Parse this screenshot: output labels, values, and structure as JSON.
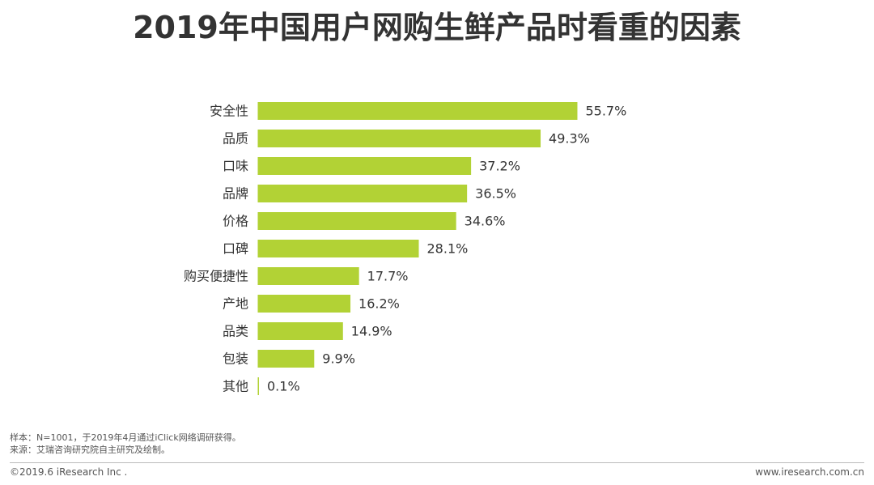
{
  "chart_data": {
    "type": "bar",
    "orientation": "horizontal",
    "title": "2019年中国用户网购生鲜产品时看重的因素",
    "categories": [
      "安全性",
      "品质",
      "口味",
      "品牌",
      "价格",
      "口碑",
      "购买便捷性",
      "产地",
      "品类",
      "包装",
      "其他"
    ],
    "values": [
      55.7,
      49.3,
      37.2,
      36.5,
      34.6,
      28.1,
      17.7,
      16.2,
      14.9,
      9.9,
      0.1
    ],
    "value_labels": [
      "55.7%",
      "49.3%",
      "37.2%",
      "36.5%",
      "34.6%",
      "28.1%",
      "17.7%",
      "16.2%",
      "14.9%",
      "9.9%",
      "0.1%"
    ],
    "unit": "%",
    "bar_color": "#b2d235",
    "grid": false,
    "legend": "none"
  },
  "notes": {
    "sample": "样本：N=1001，于2019年4月通过iClick网络调研获得。",
    "source": "来源：艾瑞咨询研究院自主研究及绘制。"
  },
  "footer": {
    "copyright": "©2019.6 iResearch Inc .",
    "website": "www.iresearch.com.cn"
  }
}
